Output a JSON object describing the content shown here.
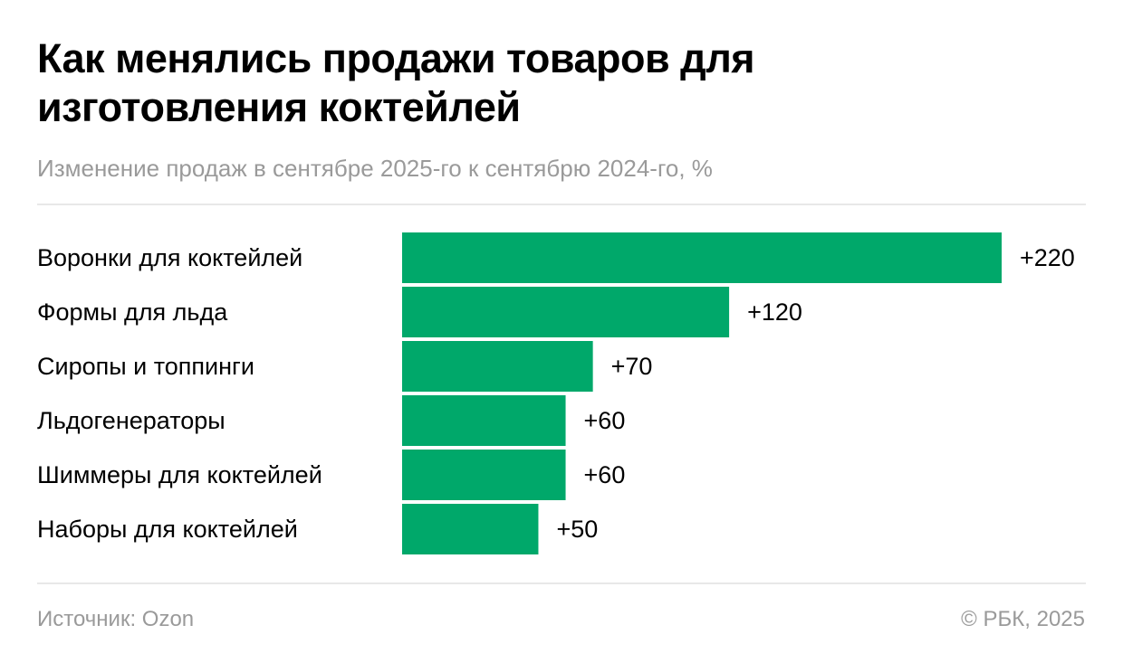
{
  "chart_data": {
    "type": "bar",
    "orientation": "horizontal",
    "title": "Как менялись продажи товаров для изготовления коктейлей",
    "subtitle": "Изменение продаж в сентябре 2025-го к сентябрю 2024-го, %",
    "categories": [
      "Воронки для коктейлей",
      "Формы для льда",
      "Сиропы и топпинги",
      "Льдогенераторы",
      "Шиммеры для коктейлей",
      "Наборы для коктейлей"
    ],
    "values": [
      220,
      120,
      70,
      60,
      60,
      50
    ],
    "data_labels": [
      "+220",
      "+120",
      "+70",
      "+60",
      "+60",
      "+50"
    ],
    "bar_color": "#00a86a",
    "grid": false
  },
  "footer": {
    "source": "Источник: Ozon",
    "copyright": "© РБК, 2025"
  }
}
